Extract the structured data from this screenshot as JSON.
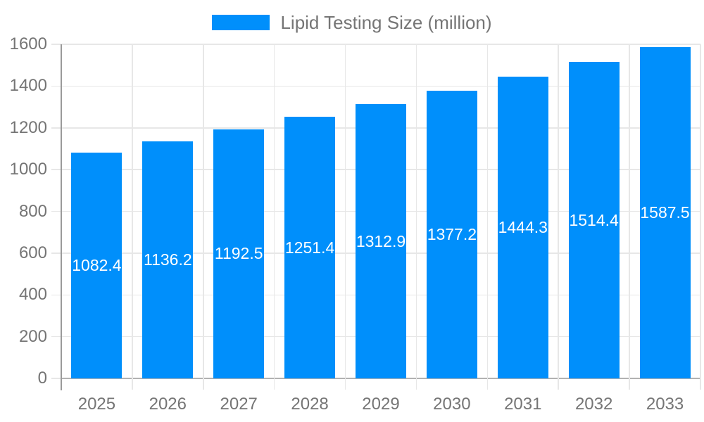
{
  "chart_data": {
    "type": "bar",
    "title": "Lipid Testing Size (million)",
    "xlabel": "",
    "ylabel": "",
    "categories": [
      "2025",
      "2026",
      "2027",
      "2028",
      "2029",
      "2030",
      "2031",
      "2032",
      "2033"
    ],
    "series": [
      {
        "name": "Lipid Testing Size (million)",
        "values": [
          1082.4,
          1136.2,
          1192.5,
          1251.4,
          1312.9,
          1377.2,
          1444.3,
          1514.4,
          1587.5
        ]
      }
    ],
    "value_labels": [
      "1082.4",
      "1136.2",
      "1192.5",
      "1251.4",
      "1312.9",
      "1377.2",
      "1444.3",
      "1514.4",
      "1587.5"
    ],
    "ylim": [
      0,
      1600
    ],
    "ytick_step": 200,
    "ytick_labels": [
      "0",
      "200",
      "400",
      "600",
      "800",
      "1000",
      "1200",
      "1400",
      "1600"
    ],
    "grid": true,
    "legend_position": "top",
    "colors": {
      "bar": "#008FFB",
      "value_label": "#ffffff",
      "axis_text": "#757575",
      "gridline": "#e7e7e7",
      "zero_line": "#b2b2b2",
      "axis_line": "#9a9a9a",
      "background": "#ffffff"
    }
  }
}
